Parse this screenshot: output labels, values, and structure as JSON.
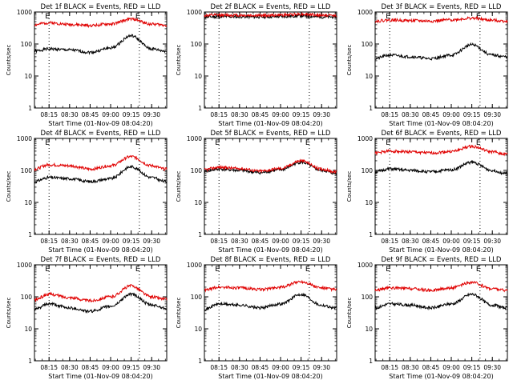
{
  "colors": {
    "events": "#000000",
    "lld": "#e00000",
    "axes": "#000000",
    "background": "#ffffff"
  },
  "chart_data": [
    {
      "type": "line",
      "title": "Det 1f BLACK = Events, RED = LLD",
      "xlabel": "Start Time (01-Nov-09 08:04:20)",
      "ylabel": "Counts/sec",
      "y_scale": "log",
      "ylim": [
        1,
        1000
      ],
      "yticks": [
        "1",
        "10",
        "100",
        "1000"
      ],
      "xticks": [
        "08:15",
        "08:30",
        "08:45",
        "09:00",
        "09:15",
        "09:30"
      ],
      "markers": [
        {
          "time": "08:15",
          "label": "E"
        },
        {
          "time": "09:21",
          "label": "E"
        }
      ],
      "series": [
        {
          "color": "black",
          "x": [
            "08:04",
            "08:15",
            "08:30",
            "08:45",
            "09:00",
            "09:15",
            "09:30",
            "09:40"
          ],
          "values": [
            60,
            70,
            65,
            55,
            75,
            180,
            70,
            60
          ]
        },
        {
          "color": "red",
          "x": [
            "08:04",
            "08:15",
            "08:30",
            "08:45",
            "09:00",
            "09:15",
            "09:30",
            "09:40"
          ],
          "values": [
            400,
            460,
            410,
            380,
            420,
            600,
            420,
            390
          ]
        }
      ]
    },
    {
      "type": "line",
      "title": "Det 2f BLACK = Events, RED = LLD",
      "xlabel": "Start Time (01-Nov-09 08:04:20)",
      "ylabel": "Counts/sec",
      "y_scale": "log",
      "ylim": [
        1,
        1000
      ],
      "yticks": [
        "1",
        "10",
        "100",
        "1000"
      ],
      "xticks": [
        "08:15",
        "08:30",
        "08:45",
        "09:00",
        "09:15",
        "09:30"
      ],
      "markers": [
        {
          "time": "08:15",
          "label": "E"
        },
        {
          "time": "09:21",
          "label": "E"
        }
      ],
      "series": [
        {
          "color": "black",
          "x": [
            "08:04",
            "08:15",
            "08:30",
            "08:45",
            "09:00",
            "09:15",
            "09:30",
            "09:40"
          ],
          "values": [
            700,
            720,
            710,
            700,
            720,
            760,
            700,
            700
          ]
        },
        {
          "color": "red",
          "x": [
            "08:04",
            "08:15",
            "08:30",
            "08:45",
            "09:00",
            "09:15",
            "09:30",
            "09:40"
          ],
          "values": [
            780,
            800,
            790,
            780,
            800,
            860,
            790,
            780
          ]
        }
      ]
    },
    {
      "type": "line",
      "title": "Det 3f BLACK = Events, RED = LLD",
      "xlabel": "Start Time (01-Nov-09 08:04:20)",
      "ylabel": "Counts/sec",
      "y_scale": "log",
      "ylim": [
        1,
        1000
      ],
      "yticks": [
        "1",
        "10",
        "100",
        "1000"
      ],
      "xticks": [
        "08:15",
        "08:30",
        "08:45",
        "09:00",
        "09:15",
        "09:30"
      ],
      "markers": [
        {
          "time": "08:15",
          "label": "E"
        },
        {
          "time": "09:21",
          "label": "E"
        }
      ],
      "series": [
        {
          "color": "black",
          "x": [
            "08:04",
            "08:15",
            "08:30",
            "08:45",
            "09:00",
            "09:15",
            "09:30",
            "09:40"
          ],
          "values": [
            35,
            45,
            40,
            35,
            45,
            95,
            45,
            40
          ]
        },
        {
          "color": "red",
          "x": [
            "08:04",
            "08:15",
            "08:30",
            "08:45",
            "09:00",
            "09:15",
            "09:30",
            "09:40"
          ],
          "values": [
            520,
            560,
            540,
            520,
            570,
            640,
            550,
            520
          ]
        }
      ]
    },
    {
      "type": "line",
      "title": "Det 4f BLACK = Events, RED = LLD",
      "xlabel": "Start Time (01-Nov-09 08:04:20)",
      "ylabel": "Counts/sec",
      "y_scale": "log",
      "ylim": [
        1,
        1000
      ],
      "yticks": [
        "1",
        "10",
        "100",
        "1000"
      ],
      "xticks": [
        "08:15",
        "08:30",
        "08:45",
        "09:00",
        "09:15",
        "09:30"
      ],
      "markers": [
        {
          "time": "08:15",
          "label": "E"
        },
        {
          "time": "09:21",
          "label": "E"
        }
      ],
      "series": [
        {
          "color": "black",
          "x": [
            "08:04",
            "08:15",
            "08:30",
            "08:45",
            "09:00",
            "09:15",
            "09:30",
            "09:40"
          ],
          "values": [
            45,
            60,
            55,
            45,
            55,
            130,
            60,
            45
          ]
        },
        {
          "color": "red",
          "x": [
            "08:04",
            "08:15",
            "08:30",
            "08:45",
            "09:00",
            "09:15",
            "09:30",
            "09:40"
          ],
          "values": [
            110,
            150,
            140,
            110,
            140,
            270,
            140,
            110
          ]
        }
      ]
    },
    {
      "type": "line",
      "title": "Det 5f BLACK = Events, RED = LLD",
      "xlabel": "Start Time (01-Nov-09 08:04:20)",
      "ylabel": "Counts/sec",
      "y_scale": "log",
      "ylim": [
        1,
        1000
      ],
      "yticks": [
        "1",
        "10",
        "100",
        "1000"
      ],
      "xticks": [
        "08:15",
        "08:30",
        "08:45",
        "09:00",
        "09:15",
        "09:30"
      ],
      "markers": [
        {
          "time": "08:15",
          "label": "E"
        },
        {
          "time": "09:21",
          "label": "E"
        }
      ],
      "series": [
        {
          "color": "black",
          "x": [
            "08:04",
            "08:15",
            "08:30",
            "08:45",
            "09:00",
            "09:15",
            "09:30",
            "09:40"
          ],
          "values": [
            95,
            110,
            100,
            85,
            105,
            180,
            100,
            80
          ]
        },
        {
          "color": "red",
          "x": [
            "08:04",
            "08:15",
            "08:30",
            "08:45",
            "09:00",
            "09:15",
            "09:30",
            "09:40"
          ],
          "values": [
            105,
            125,
            115,
            95,
            115,
            200,
            110,
            90
          ]
        }
      ]
    },
    {
      "type": "line",
      "title": "Det 6f BLACK = Events, RED = LLD",
      "xlabel": "Start Time (01-Nov-09 08:04:20)",
      "ylabel": "Counts/sec",
      "y_scale": "log",
      "ylim": [
        1,
        1000
      ],
      "yticks": [
        "1",
        "10",
        "100",
        "1000"
      ],
      "xticks": [
        "08:15",
        "08:30",
        "08:45",
        "09:00",
        "09:15",
        "09:30"
      ],
      "markers": [
        {
          "time": "08:15",
          "label": "E"
        },
        {
          "time": "09:21",
          "label": "E"
        }
      ],
      "series": [
        {
          "color": "black",
          "x": [
            "08:04",
            "08:15",
            "08:30",
            "08:45",
            "09:00",
            "09:15",
            "09:30",
            "09:40"
          ],
          "values": [
            90,
            110,
            100,
            90,
            105,
            180,
            100,
            80
          ]
        },
        {
          "color": "red",
          "x": [
            "08:04",
            "08:15",
            "08:30",
            "08:45",
            "09:00",
            "09:15",
            "09:30",
            "09:40"
          ],
          "values": [
            350,
            400,
            380,
            350,
            390,
            560,
            380,
            320
          ]
        }
      ]
    },
    {
      "type": "line",
      "title": "Det 7f BLACK = Events, RED = LLD",
      "xlabel": "Start Time (01-Nov-09 08:04:20)",
      "ylabel": "Counts/sec",
      "y_scale": "log",
      "ylim": [
        1,
        1000
      ],
      "yticks": [
        "1",
        "10",
        "100",
        "1000"
      ],
      "xticks": [
        "08:15",
        "08:30",
        "08:45",
        "09:00",
        "09:15",
        "09:30"
      ],
      "markers": [
        {
          "time": "08:15",
          "label": "E"
        },
        {
          "time": "09:21",
          "label": "E"
        }
      ],
      "series": [
        {
          "color": "black",
          "x": [
            "08:04",
            "08:15",
            "08:30",
            "08:45",
            "09:00",
            "09:15",
            "09:30",
            "09:40"
          ],
          "values": [
            40,
            60,
            45,
            35,
            50,
            120,
            55,
            45
          ]
        },
        {
          "color": "red",
          "x": [
            "08:04",
            "08:15",
            "08:30",
            "08:45",
            "09:00",
            "09:15",
            "09:30",
            "09:40"
          ],
          "values": [
            80,
            120,
            95,
            75,
            100,
            220,
            100,
            85
          ]
        }
      ]
    },
    {
      "type": "line",
      "title": "Det 8f BLACK = Events, RED = LLD",
      "xlabel": "Start Time (01-Nov-09 08:04:20)",
      "ylabel": "Counts/sec",
      "y_scale": "log",
      "ylim": [
        1,
        1000
      ],
      "yticks": [
        "1",
        "10",
        "100",
        "1000"
      ],
      "xticks": [
        "08:15",
        "08:30",
        "08:45",
        "09:00",
        "09:15",
        "09:30"
      ],
      "markers": [
        {
          "time": "08:15",
          "label": "E"
        },
        {
          "time": "09:21",
          "label": "E"
        }
      ],
      "series": [
        {
          "color": "black",
          "x": [
            "08:04",
            "08:15",
            "08:30",
            "08:45",
            "09:00",
            "09:15",
            "09:30",
            "09:40"
          ],
          "values": [
            40,
            60,
            55,
            45,
            60,
            120,
            55,
            45
          ]
        },
        {
          "color": "red",
          "x": [
            "08:04",
            "08:15",
            "08:30",
            "08:45",
            "09:00",
            "09:15",
            "09:30",
            "09:40"
          ],
          "values": [
            160,
            200,
            190,
            170,
            200,
            300,
            190,
            170
          ]
        }
      ]
    },
    {
      "type": "line",
      "title": "Det 9f BLACK = Events, RED = LLD",
      "xlabel": "Start Time (01-Nov-09 08:04:20)",
      "ylabel": "Counts/sec",
      "y_scale": "log",
      "ylim": [
        1,
        1000
      ],
      "yticks": [
        "1",
        "10",
        "100",
        "1000"
      ],
      "xticks": [
        "08:15",
        "08:30",
        "08:45",
        "09:00",
        "09:15",
        "09:30"
      ],
      "markers": [
        {
          "time": "08:15",
          "label": "E"
        },
        {
          "time": "09:21",
          "label": "E"
        }
      ],
      "series": [
        {
          "color": "black",
          "x": [
            "08:04",
            "08:15",
            "08:30",
            "08:45",
            "09:00",
            "09:15",
            "09:30",
            "09:40"
          ],
          "values": [
            45,
            60,
            55,
            45,
            60,
            120,
            55,
            45
          ]
        },
        {
          "color": "red",
          "x": [
            "08:04",
            "08:15",
            "08:30",
            "08:45",
            "09:00",
            "09:15",
            "09:30",
            "09:40"
          ],
          "values": [
            160,
            190,
            180,
            160,
            190,
            280,
            180,
            160
          ]
        }
      ]
    }
  ]
}
